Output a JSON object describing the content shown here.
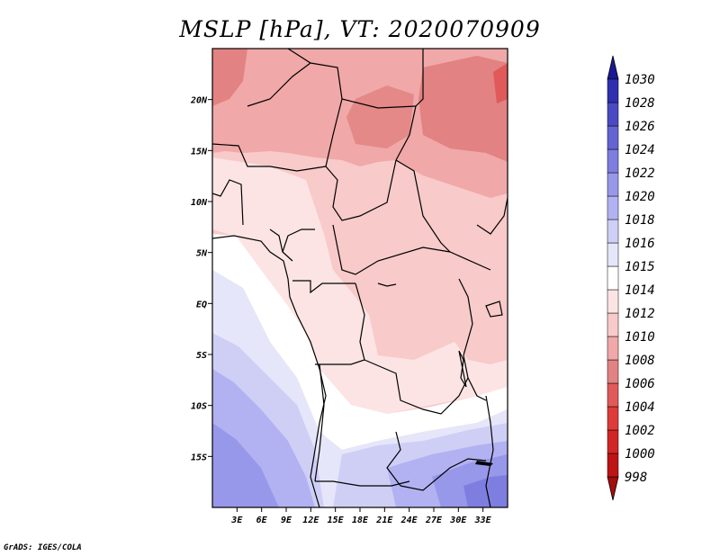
{
  "title": "MSLP [hPa], VT: 2020070909",
  "credit": "GrADS: IGES/COLA",
  "map": {
    "lon_range": [
      0,
      36
    ],
    "lat_range": [
      -20,
      25
    ],
    "lon_ticks": [
      "3E",
      "6E",
      "9E",
      "12E",
      "15E",
      "18E",
      "21E",
      "24E",
      "27E",
      "30E",
      "33E"
    ],
    "lat_ticks": [
      "20N",
      "15N",
      "10N",
      "5N",
      "EQ",
      "5S",
      "10S",
      "15S"
    ],
    "field_colors": {
      "land_shade": "#f2f2f2",
      "border": "#000000"
    }
  },
  "colorbar": {
    "levels": [
      "998",
      "1000",
      "1002",
      "1004",
      "1006",
      "1008",
      "1010",
      "1012",
      "1014",
      "1015",
      "1016",
      "1018",
      "1020",
      "1022",
      "1024",
      "1026",
      "1028",
      "1030"
    ],
    "colors": [
      "#a50d0d",
      "#be1414",
      "#d22525",
      "#de3b3b",
      "#e05a5a",
      "#e28282",
      "#f0a8a8",
      "#f8caca",
      "#fde4e4",
      "#ffffff",
      "#e6e6fa",
      "#cfcff6",
      "#b2b2f2",
      "#9898ea",
      "#7e7ee0",
      "#6464d2",
      "#4a4ac2",
      "#2f2fb0",
      "#1a1a96"
    ]
  }
}
